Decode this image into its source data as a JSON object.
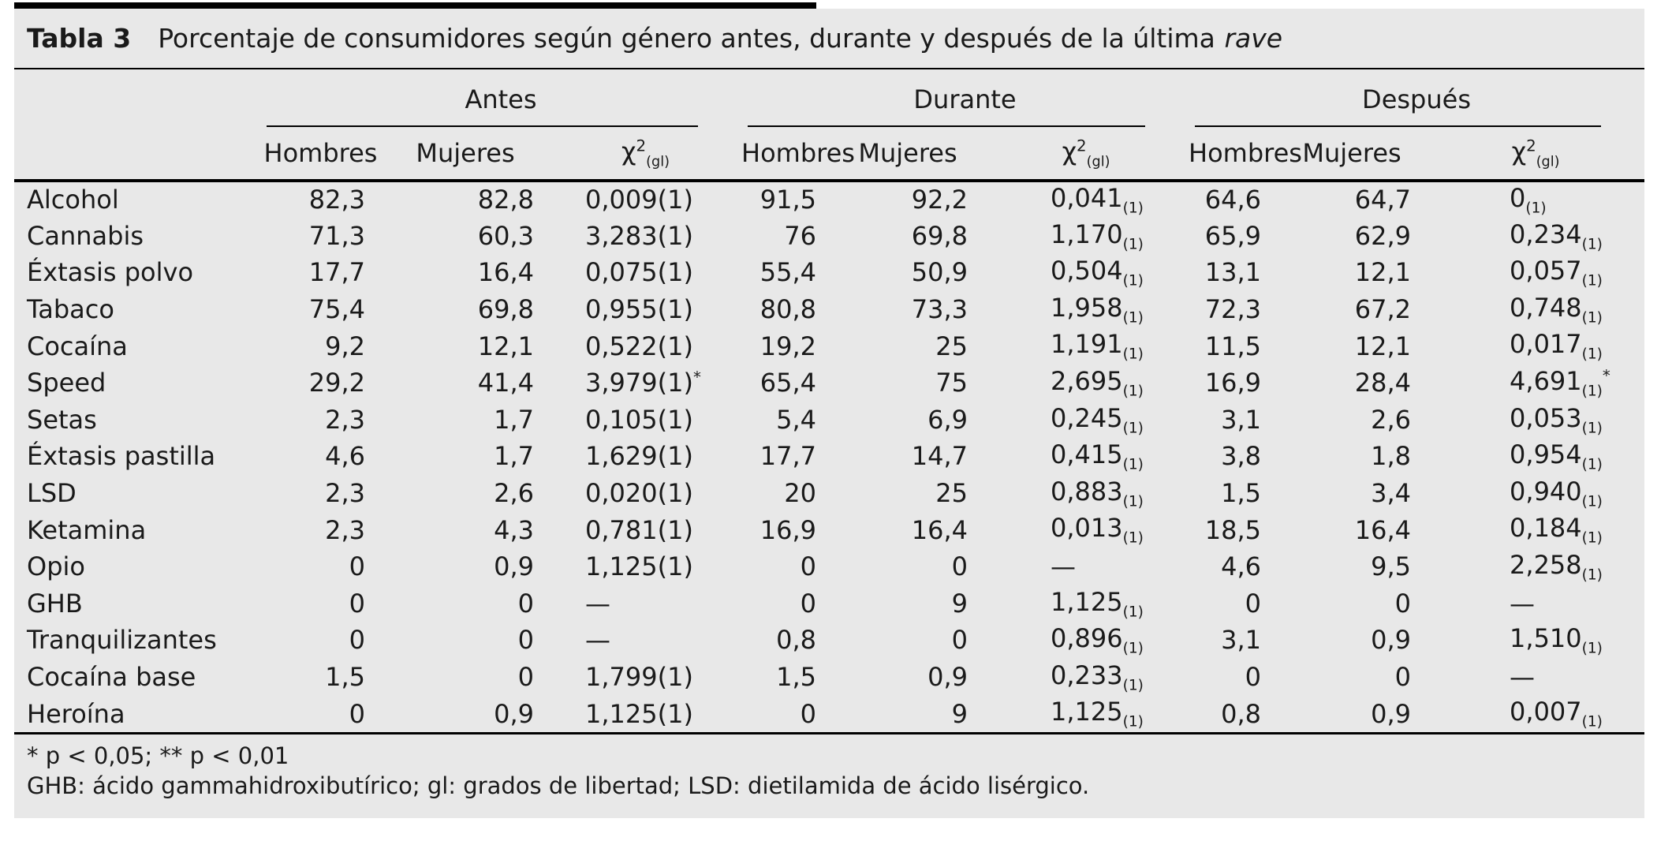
{
  "title": {
    "label": "Tabla 3",
    "text": "Porcentaje de consumidores según género antes, durante y después de la última",
    "italic": "rave"
  },
  "header": {
    "groups": [
      "Antes",
      "Durante",
      "Después"
    ],
    "subcolumns": [
      "Hombres",
      "Mujeres"
    ],
    "chi_label": {
      "base": "χ",
      "sup": "2",
      "sub": "(gl)"
    }
  },
  "table": {
    "rows": [
      {
        "name": "Alcohol",
        "values": [
          "82,3",
          "82,8",
          "0,009(1)",
          "91,5",
          "92,2",
          "0,041_(1)",
          "64,6",
          "64,7",
          "0_(1)"
        ]
      },
      {
        "name": "Cannabis",
        "values": [
          "71,3",
          "60,3",
          "3,283(1)",
          "76",
          "69,8",
          "1,170_(1)",
          "65,9",
          "62,9",
          "0,234_(1)"
        ]
      },
      {
        "name": "Éxtasis polvo",
        "values": [
          "17,7",
          "16,4",
          "0,075(1)",
          "55,4",
          "50,9",
          "0,504_(1)",
          "13,1",
          "12,1",
          "0,057_(1)"
        ]
      },
      {
        "name": "Tabaco",
        "values": [
          "75,4",
          "69,8",
          "0,955(1)",
          "80,8",
          "73,3",
          "1,958_(1)",
          "72,3",
          "67,2",
          "0,748_(1)"
        ]
      },
      {
        "name": "Cocaína",
        "values": [
          "9,2",
          "12,1",
          "0,522(1)",
          "19,2",
          "25",
          "1,191_(1)",
          "11,5",
          "12,1",
          "0,017_(1)"
        ]
      },
      {
        "name": "Speed",
        "values": [
          "29,2",
          "41,4",
          "3,979(1)*",
          "65,4",
          "75",
          "2,695_(1)",
          "16,9",
          "28,4",
          "4,691_(1)*"
        ]
      },
      {
        "name": "Setas",
        "values": [
          "2,3",
          "1,7",
          "0,105(1)",
          "5,4",
          "6,9",
          "0,245_(1)",
          "3,1",
          "2,6",
          "0,053_(1)"
        ]
      },
      {
        "name": "Éxtasis pastilla",
        "values": [
          "4,6",
          "1,7",
          "1,629(1)",
          "17,7",
          "14,7",
          "0,415_(1)",
          "3,8",
          "1,8",
          "0,954_(1)"
        ]
      },
      {
        "name": "LSD",
        "values": [
          "2,3",
          "2,6",
          "0,020(1)",
          "20",
          "25",
          "0,883_(1)",
          "1,5",
          "3,4",
          "0,940_(1)"
        ]
      },
      {
        "name": "Ketamina",
        "values": [
          "2,3",
          "4,3",
          "0,781(1)",
          "16,9",
          "16,4",
          "0,013_(1)",
          "18,5",
          "16,4",
          "0,184_(1)"
        ]
      },
      {
        "name": "Opio",
        "values": [
          "0",
          "0,9",
          "1,125(1)",
          "0",
          "0",
          "—",
          "4,6",
          "9,5",
          "2,258_(1)"
        ]
      },
      {
        "name": "GHB",
        "values": [
          "0",
          "0",
          "—",
          "0",
          "9",
          "1,125_(1)",
          "0",
          "0",
          "—"
        ]
      },
      {
        "name": "Tranquilizantes",
        "values": [
          "0",
          "0",
          "—",
          "0,8",
          "0",
          "0,896_(1)",
          "3,1",
          "0,9",
          "1,510_(1)"
        ]
      },
      {
        "name": "Cocaína base",
        "values": [
          "1,5",
          "0",
          "1,799(1)",
          "1,5",
          "0,9",
          "0,233_(1)",
          "0",
          "0",
          "—"
        ]
      },
      {
        "name": "Heroína",
        "values": [
          "0",
          "0,9",
          "1,125(1)",
          "0",
          "9",
          "1,125_(1)",
          "0,8",
          "0,9",
          "0,007_(1)"
        ]
      }
    ]
  },
  "footnotes": [
    "* p < 0,05; ** p < 0,01",
    "GHB: ácido gammahidroxibutírico; gl: grados de libertad; LSD: dietilamida de ácido lisérgico."
  ],
  "colors": {
    "background": "#e8e8e8",
    "text": "#1a1a1a",
    "rule": "#000000"
  }
}
